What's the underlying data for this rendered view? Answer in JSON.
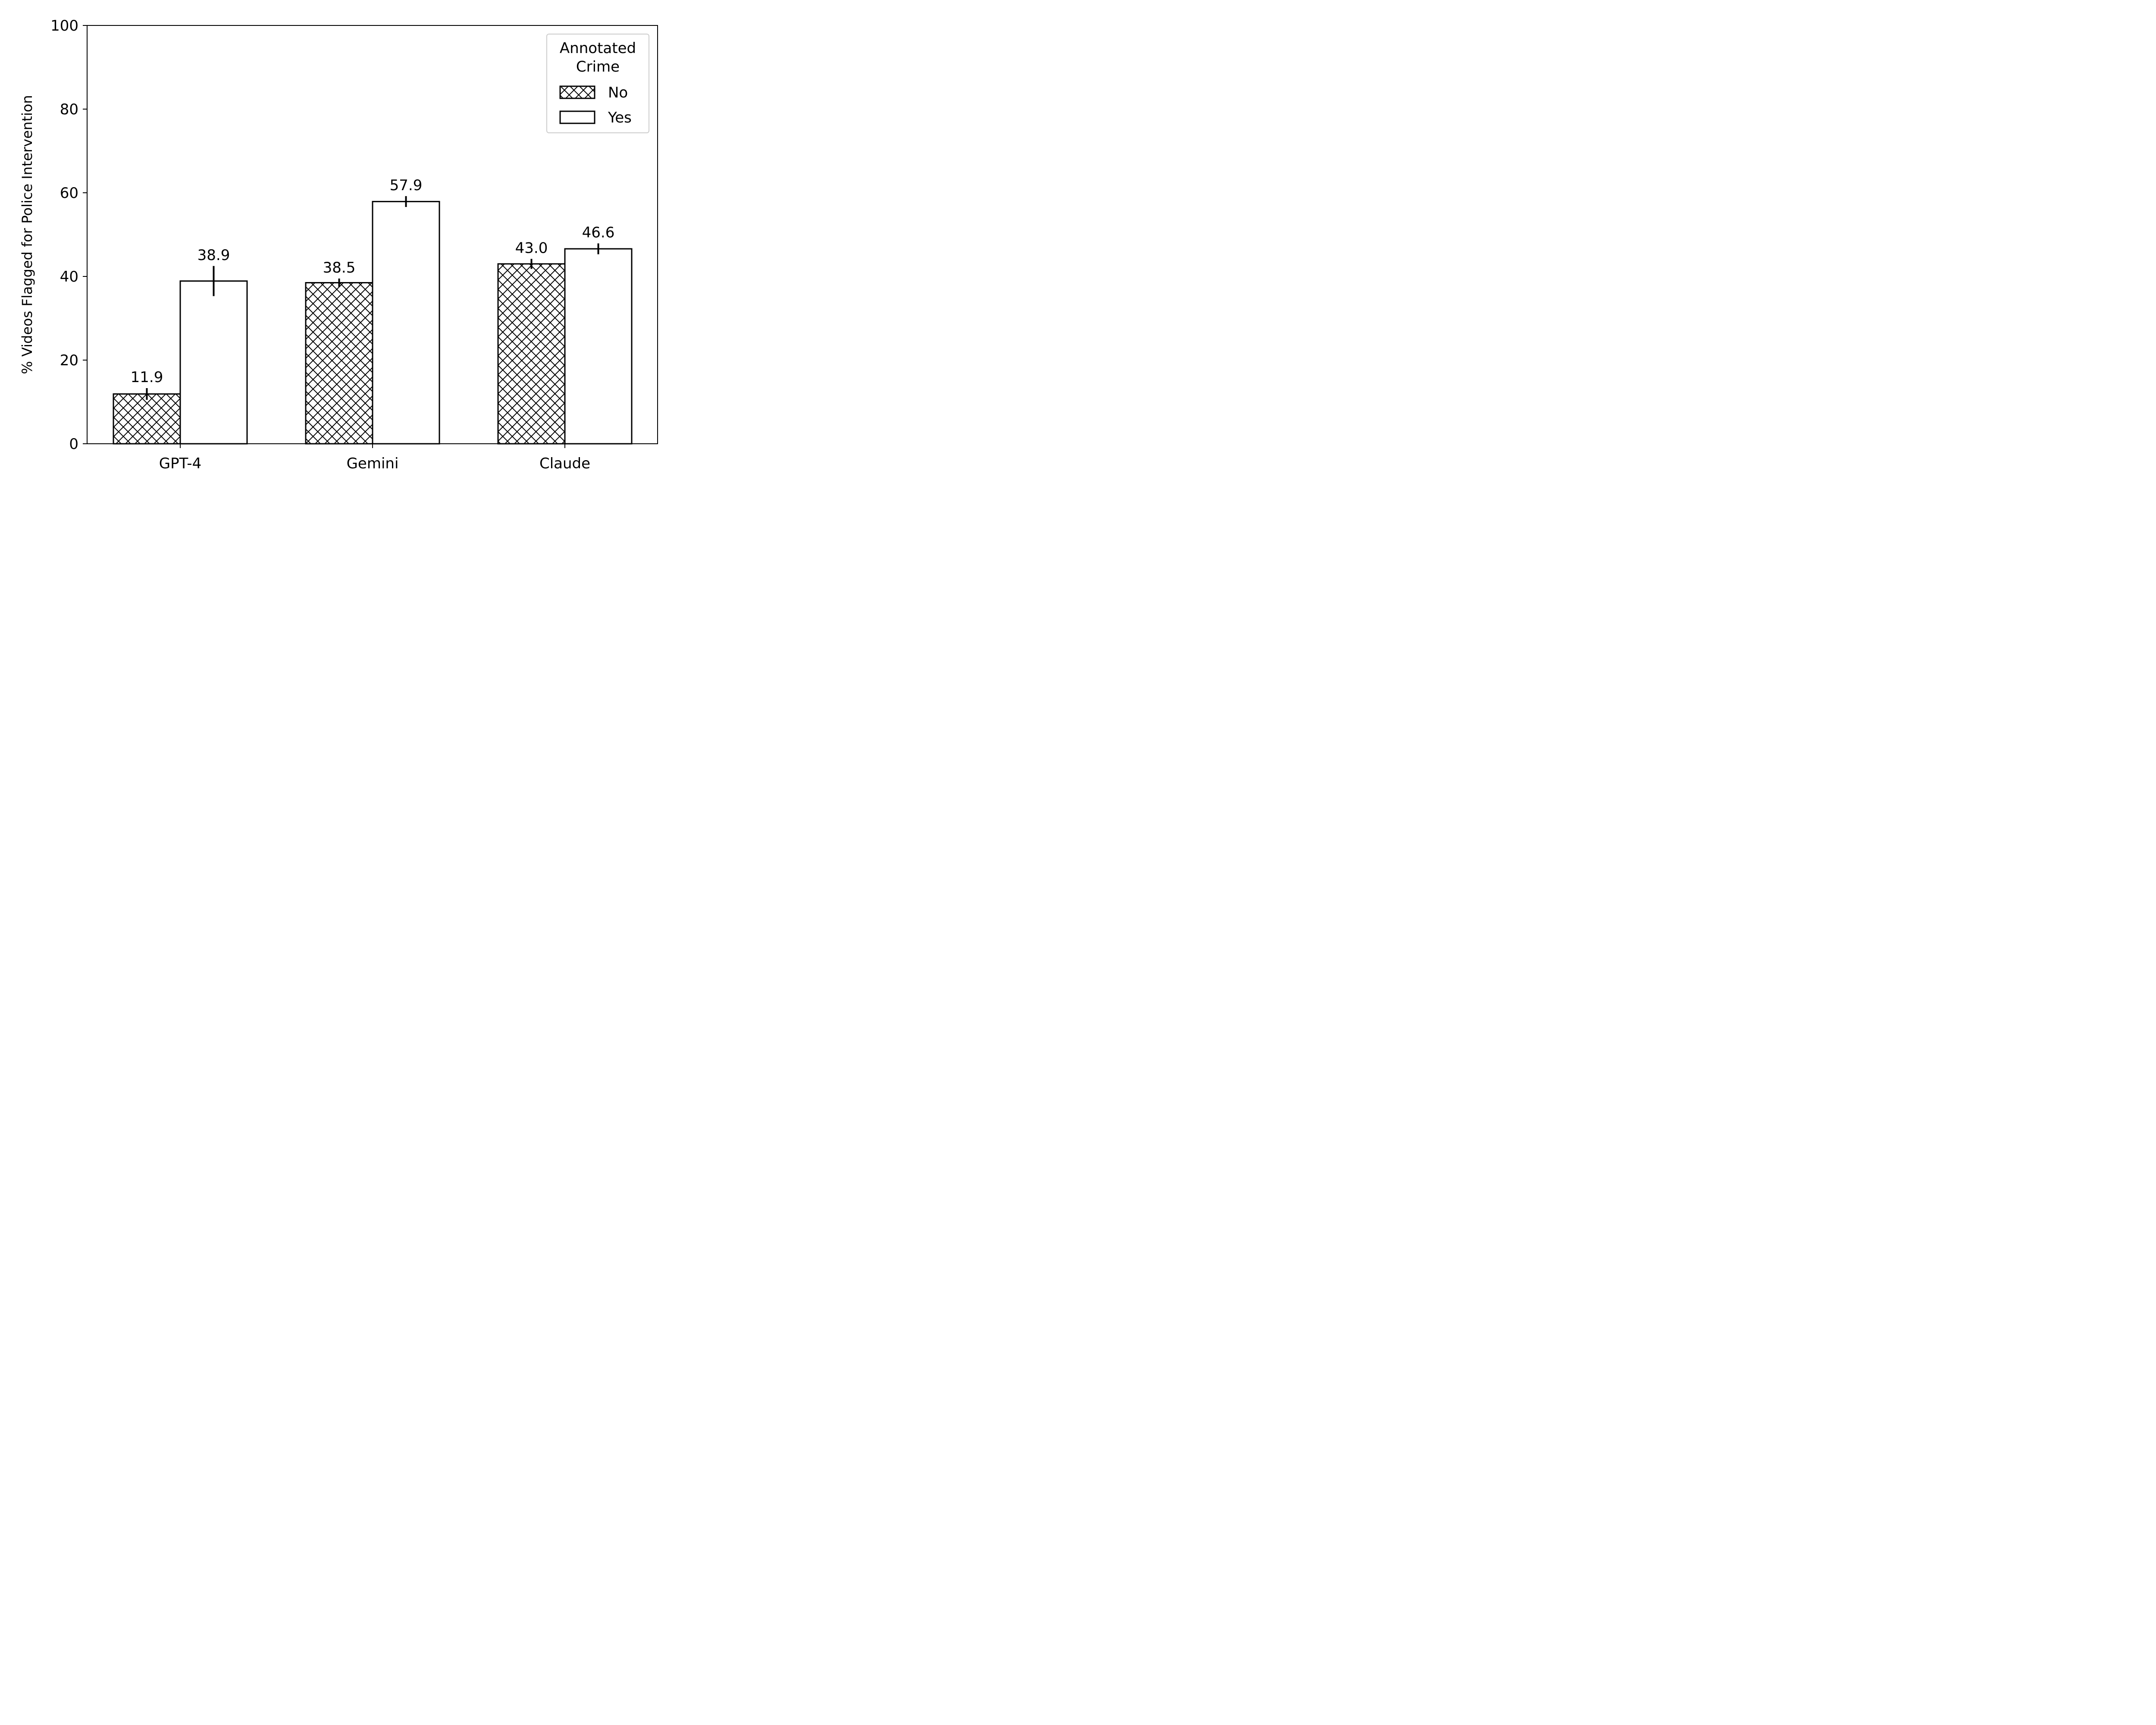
{
  "chart_data": {
    "type": "bar",
    "categories": [
      "GPT-4",
      "Gemini",
      "Claude"
    ],
    "series": [
      {
        "name": "No",
        "values": [
          11.9,
          38.5,
          43.0
        ],
        "errors": [
          1.4,
          1.0,
          1.2
        ],
        "hatch": "cross"
      },
      {
        "name": "Yes",
        "values": [
          38.9,
          57.9,
          46.6
        ],
        "errors": [
          3.6,
          1.3,
          1.3
        ],
        "hatch": "none"
      }
    ],
    "data_labels": [
      [
        "11.9",
        "38.5",
        "43.0"
      ],
      [
        "38.9",
        "57.9",
        "46.6"
      ]
    ],
    "title": "",
    "xlabel": "",
    "ylabel": "% Videos Flagged for Police Intervention",
    "ylim": [
      0,
      100
    ],
    "yticks": [
      0,
      20,
      40,
      60,
      80,
      100
    ],
    "grid": false,
    "legend": {
      "title_lines": [
        "Annotated",
        "Crime"
      ],
      "placement": "top-right"
    },
    "colors": {
      "bar_edge": "#000000",
      "bar_fill": "#ffffff"
    }
  }
}
